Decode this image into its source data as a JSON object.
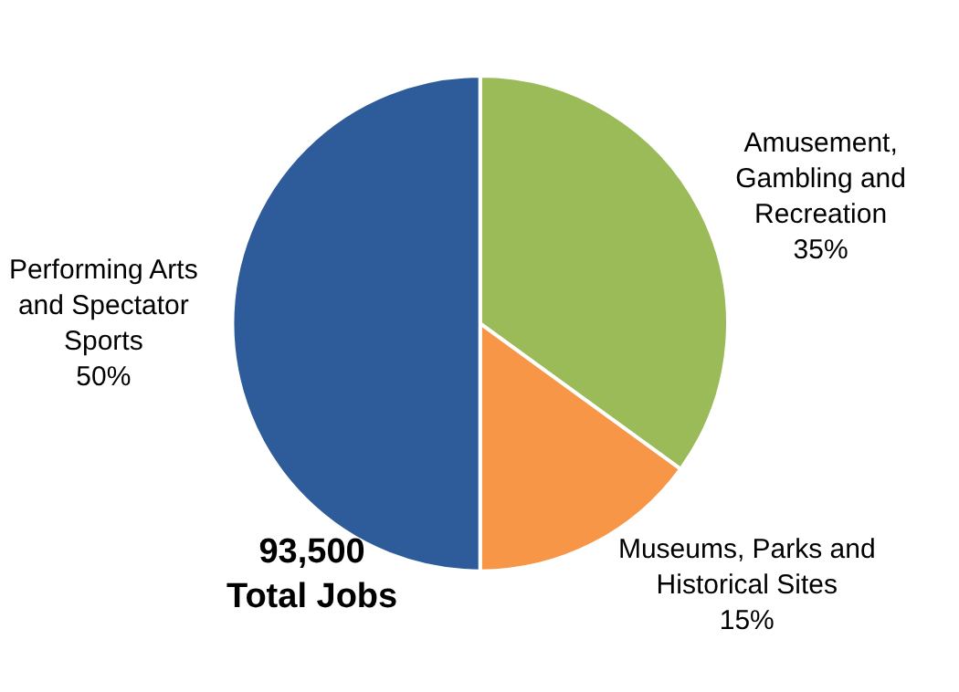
{
  "chart_data": {
    "type": "pie",
    "categories": [
      "Amusement, Gambling and Recreation",
      "Museums, Parks and Historical Sites",
      "Performing Arts and Spectator Sports"
    ],
    "values": [
      35,
      15,
      50
    ],
    "value_labels": [
      "35%",
      "15%",
      "50%"
    ],
    "colors": [
      "#9bbb59",
      "#f79646",
      "#2e5c9b"
    ],
    "annotations": [
      "93,500\nTotal Jobs"
    ],
    "legend": false
  }
}
